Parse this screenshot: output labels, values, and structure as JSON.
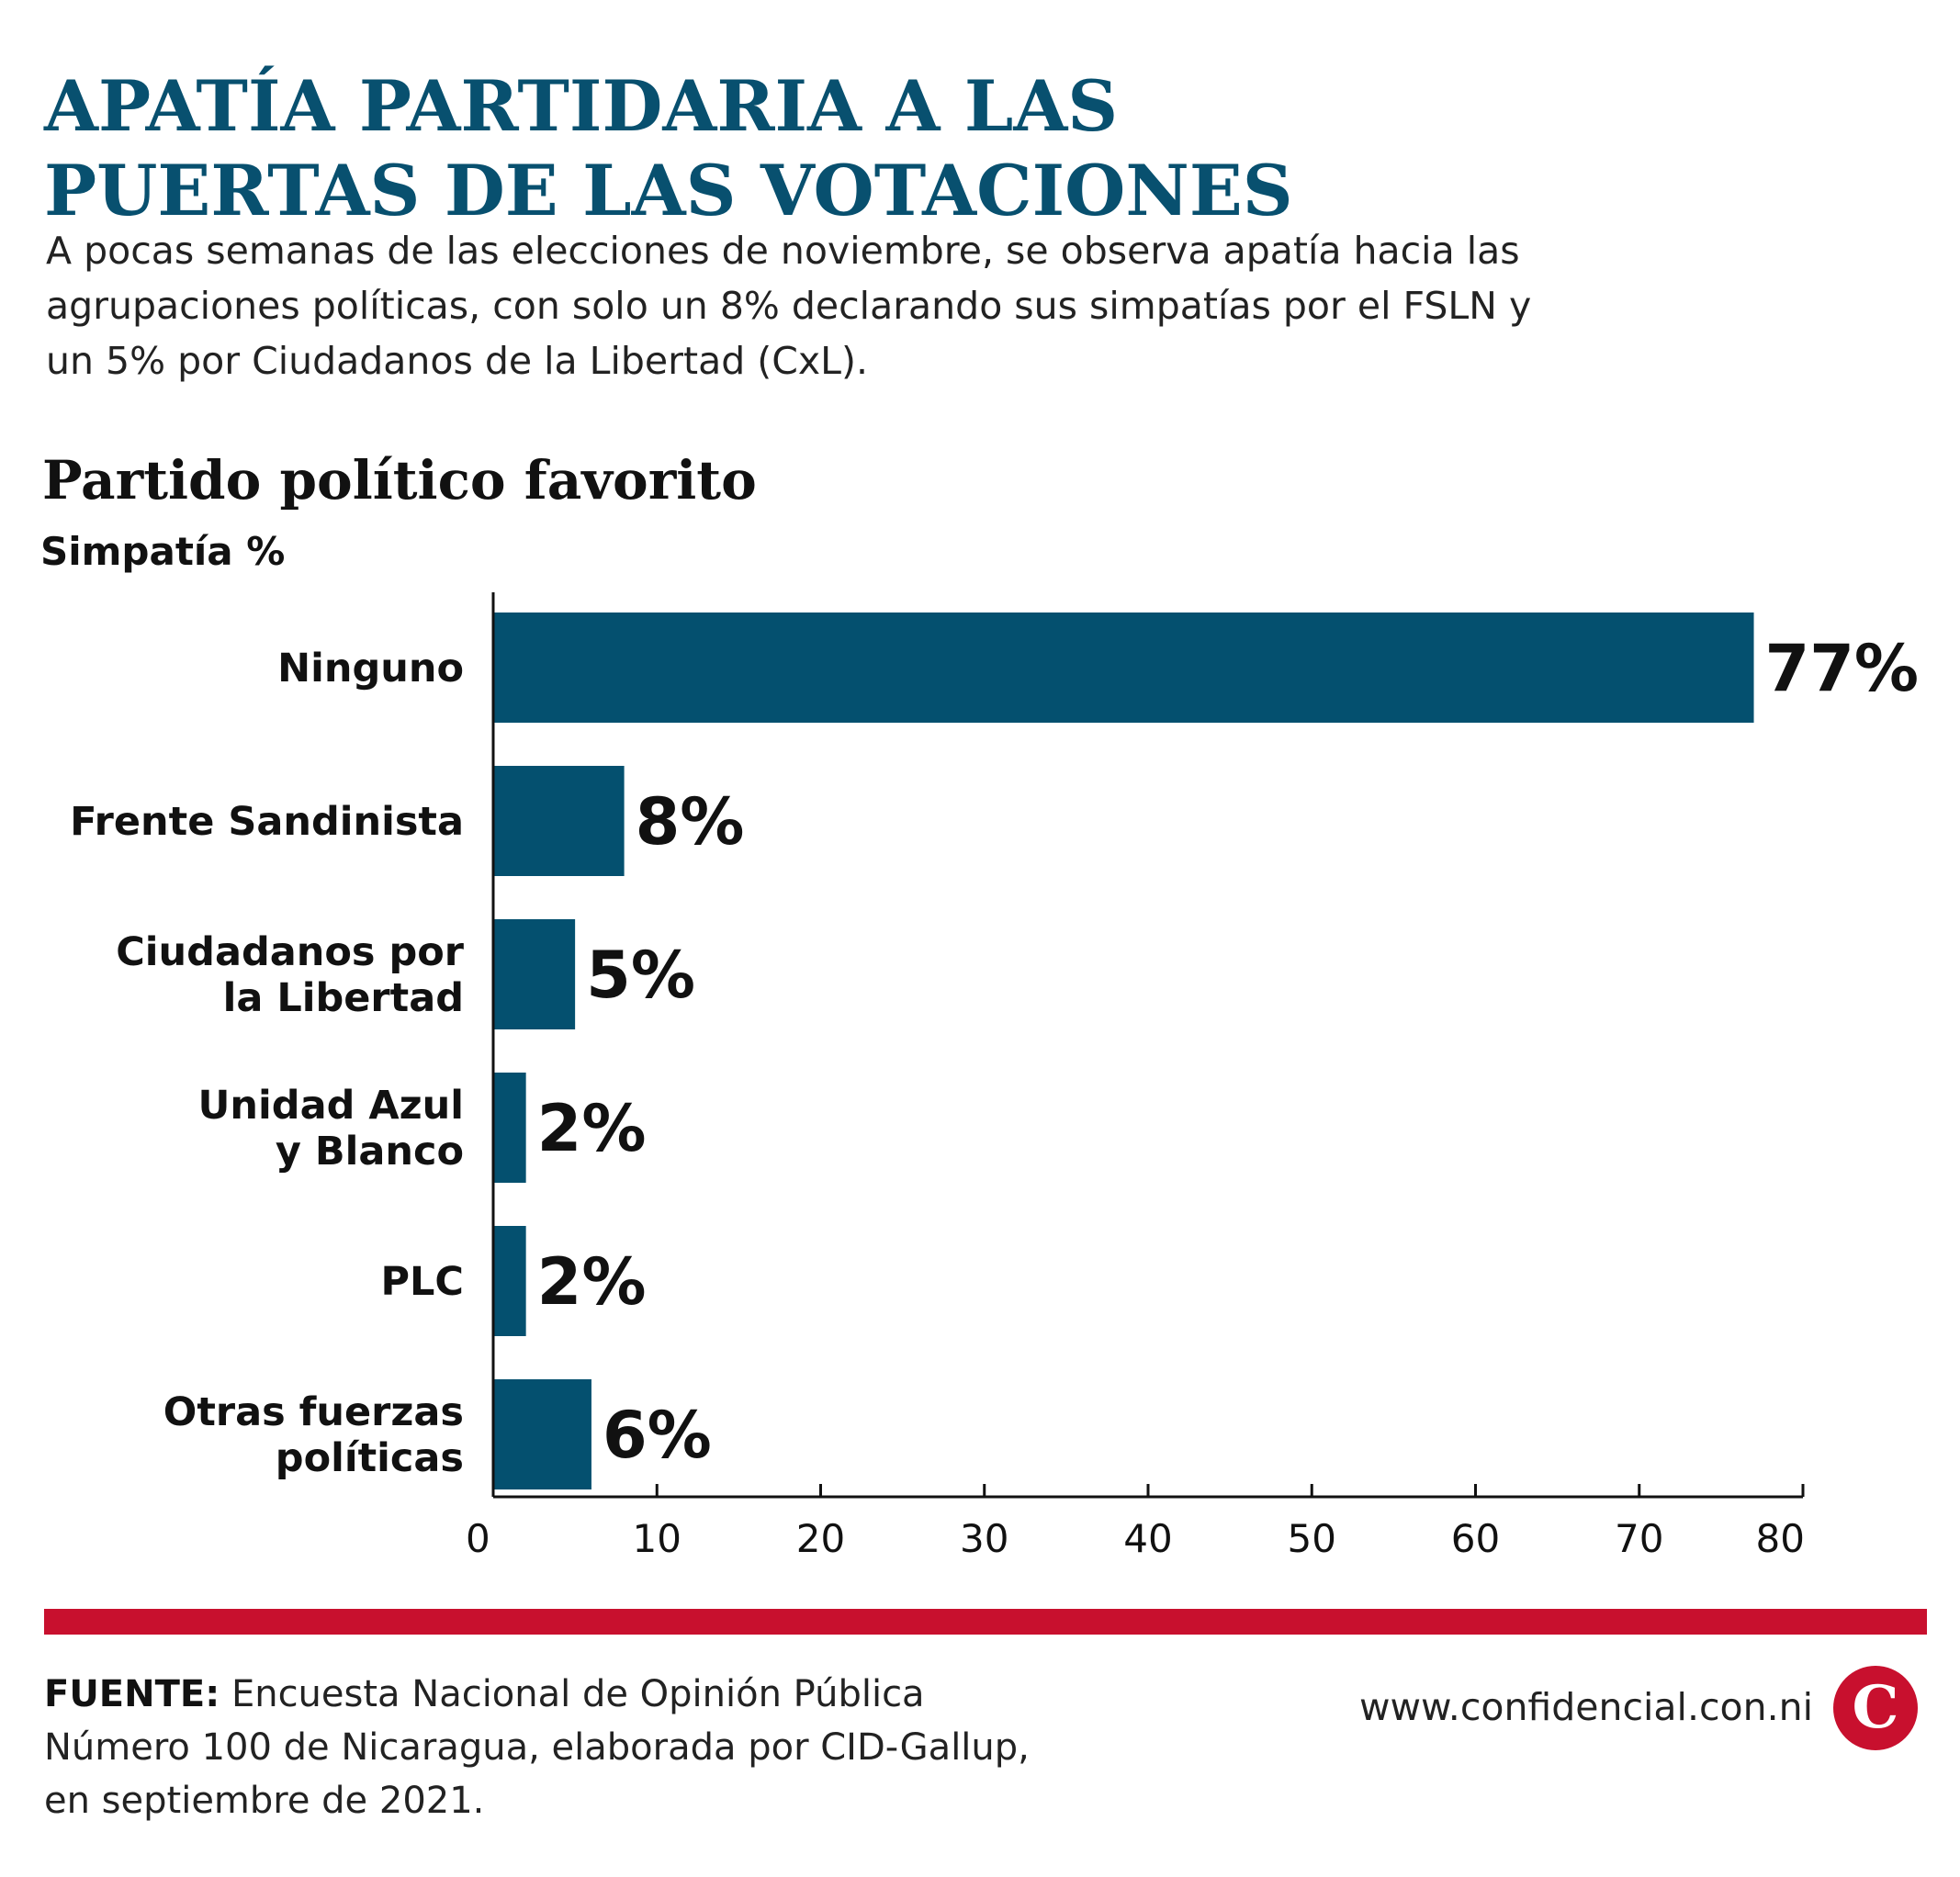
{
  "header": {
    "title_lines": [
      "APATÍA PARTIDARIA A LAS",
      "PUERTAS DE LAS VOTACIONES"
    ],
    "subtitle_lines": [
      "A pocas semanas de las elecciones de noviembre, se observa apatía hacia las",
      "agrupaciones políticas, con solo un 8% declarando sus simpatías por el FSLN y",
      "un 5% por Ciudadanos de la Libertad (CxL)."
    ]
  },
  "chart_data": {
    "type": "bar",
    "orientation": "horizontal",
    "title": "Partido político favorito",
    "ylabel": "Simpatía %",
    "categories": [
      [
        "Ninguno"
      ],
      [
        "Frente Sandinista"
      ],
      [
        "Ciudadanos por",
        "la Libertad"
      ],
      [
        "Unidad Azul",
        "y Blanco"
      ],
      [
        "PLC"
      ],
      [
        "Otras fuerzas",
        "políticas"
      ]
    ],
    "values": [
      77,
      8,
      5,
      2,
      2,
      6
    ],
    "value_labels": [
      "77%",
      "8%",
      "5%",
      "2%",
      "2%",
      "6%"
    ],
    "xlim": [
      0,
      80
    ],
    "xticks": [
      0,
      10,
      20,
      30,
      40,
      50,
      60,
      70,
      80
    ],
    "grid": false,
    "bar_color": "#04506f"
  },
  "footer": {
    "source_label": "FUENTE:",
    "source_lines": [
      "Encuesta Nacional de Opinión Pública",
      "Número 100 de Nicaragua, elaborada por CID-Gallup,",
      "en septiembre de 2021."
    ],
    "website": "www.confidencial.con.ni",
    "logo_letter": "C"
  },
  "colors": {
    "title": "#08506f",
    "divider": "#c8102e",
    "logo": "#c8102e"
  }
}
